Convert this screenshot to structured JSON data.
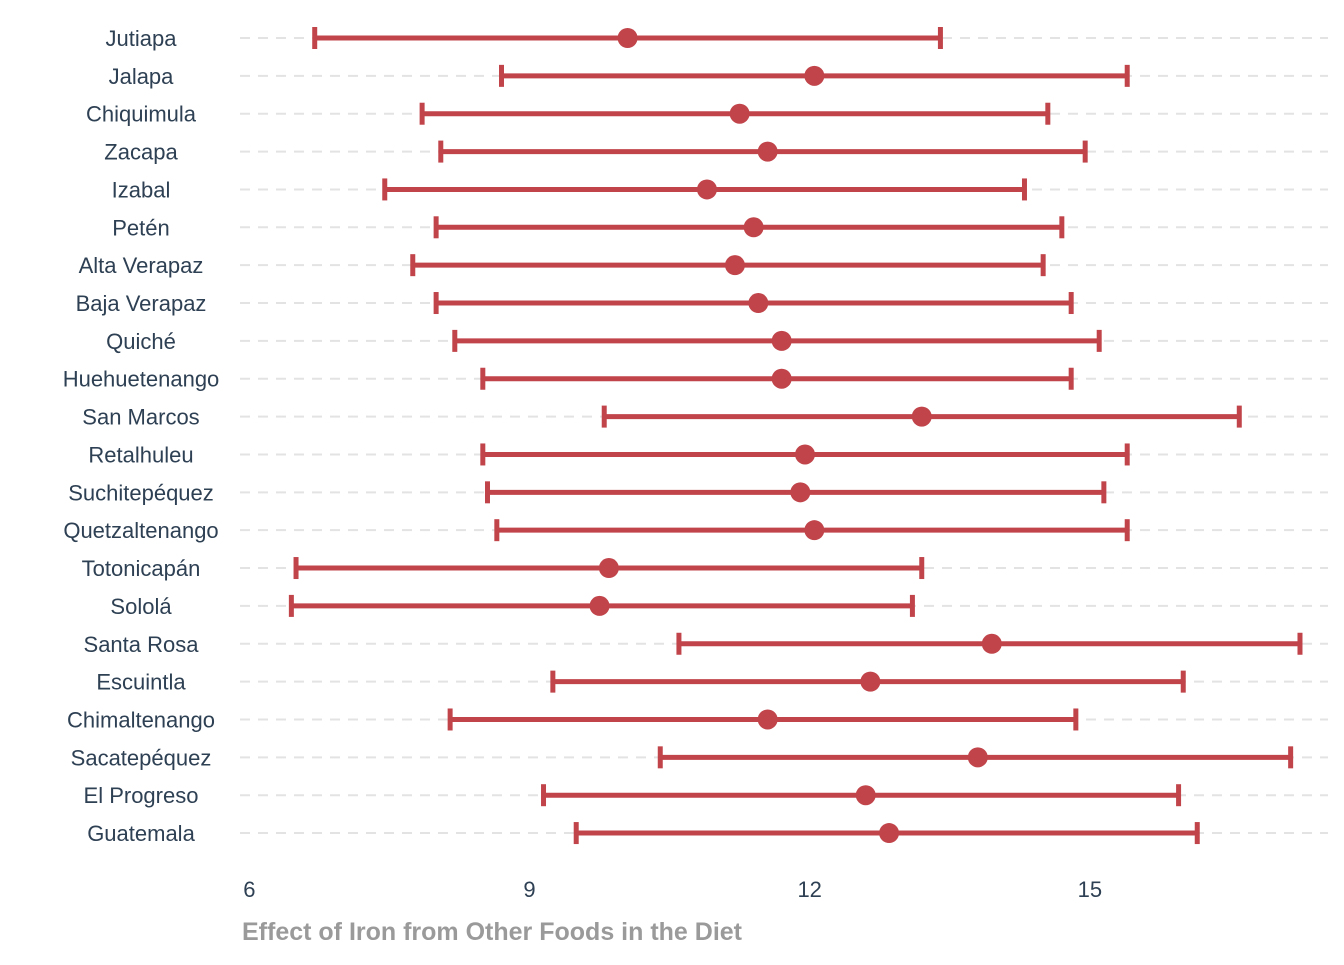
{
  "chart_data": {
    "type": "errorbar",
    "xlabel": "Effect of Iron from Other Foods in the Diet",
    "ylabel": "",
    "title": "",
    "xlim": [
      5.9,
      17.55
    ],
    "xticks": [
      6,
      9,
      12,
      15
    ],
    "grid": "horizontal dashed",
    "legend": "none",
    "color": "#c0444a",
    "series": [
      {
        "categories": [
          "Jutiapa",
          "Jalapa",
          "Chiquimula",
          "Zacapa",
          "Izabal",
          "Petén",
          "Alta Verapaz",
          "Baja Verapaz",
          "Quiché",
          "Huehuetenango",
          "San Marcos",
          "Retalhuleu",
          "Suchitepéquez",
          "Quetzaltenango",
          "Totonicapán",
          "Sololá",
          "Santa Rosa",
          "Escuintla",
          "Chimaltenango",
          "Sacatepéquez",
          "El Progreso",
          "Guatemala"
        ],
        "estimate": [
          10.05,
          12.05,
          11.25,
          11.55,
          10.9,
          11.4,
          11.2,
          11.45,
          11.7,
          11.7,
          13.2,
          11.95,
          11.9,
          12.05,
          9.85,
          9.75,
          13.95,
          12.65,
          11.55,
          13.8,
          12.6,
          12.85
        ],
        "lower": [
          6.7,
          8.7,
          7.85,
          8.05,
          7.45,
          8.0,
          7.75,
          8.0,
          8.2,
          8.5,
          9.8,
          8.5,
          8.55,
          8.65,
          6.5,
          6.45,
          10.6,
          9.25,
          8.15,
          10.4,
          9.15,
          9.5
        ],
        "upper": [
          13.4,
          15.4,
          14.55,
          14.95,
          14.3,
          14.7,
          14.5,
          14.8,
          15.1,
          14.8,
          16.6,
          15.4,
          15.15,
          15.4,
          13.2,
          13.1,
          17.25,
          16.0,
          14.85,
          17.15,
          15.95,
          16.15
        ]
      }
    ]
  }
}
